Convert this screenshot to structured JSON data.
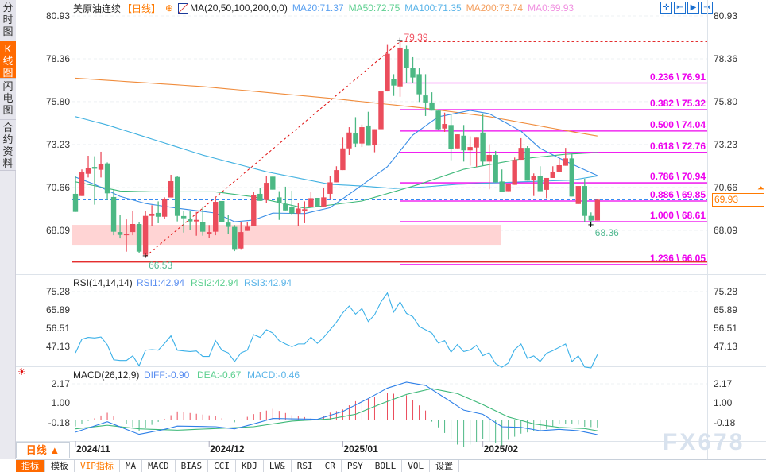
{
  "sidebar": {
    "tabs": [
      {
        "label": "分时图",
        "active": false
      },
      {
        "label": "K线图",
        "active": true
      },
      {
        "label": "闪电图",
        "active": false
      },
      {
        "label": "合约资料",
        "active": false
      }
    ]
  },
  "header": {
    "symbol": "美原油连续",
    "period": "【日线】",
    "ma_params": "MA(20,50,100,200,0,0)",
    "ma20": "MA20:71.37",
    "ma50": "MA50:72.75",
    "ma100": "MA100:71.35",
    "ma200": "MA200:73.74",
    "ma0": "MA0:69.93"
  },
  "toolbar_icons": [
    "crosshair-icon",
    "fit-left-icon",
    "play-icon",
    "jump-end-icon"
  ],
  "colors": {
    "up": "#eb4d5c",
    "down": "#4cb884",
    "ma20": "#3a8ee6",
    "ma50": "#3cb878",
    "ma100": "#3fb0e0",
    "ma200": "#f08c3c",
    "fib": "#ee00ee",
    "accent": "#ff6a00",
    "zone": "#ffd4d4"
  },
  "price_axis": {
    "ticks": [
      "80.93",
      "78.36",
      "75.80",
      "73.23",
      "70.66",
      "68.09"
    ],
    "current": "69.93"
  },
  "price_chart": {
    "candles_ohlc": [
      [
        70.28,
        71.34,
        69.2,
        69.2
      ],
      [
        70.15,
        71.74,
        70.15,
        71.56
      ],
      [
        71.48,
        72.56,
        71.26,
        71.83
      ],
      [
        71.89,
        72.53,
        69.63,
        71.78
      ],
      [
        71.72,
        72.8,
        71.26,
        72.04
      ],
      [
        72.1,
        72.16,
        69.91,
        70.31
      ],
      [
        70.09,
        70.51,
        67.8,
        68.01
      ],
      [
        67.99,
        69.04,
        67.61,
        67.82
      ],
      [
        67.8,
        68.75,
        66.82,
        67.9
      ],
      [
        67.99,
        69.28,
        67.8,
        68.47
      ],
      [
        68.47,
        68.57,
        66.74,
        66.82
      ],
      [
        66.63,
        69.28,
        66.53,
        68.96
      ],
      [
        68.96,
        69.6,
        68.37,
        69.09
      ],
      [
        69.14,
        69.83,
        68.52,
        68.91
      ],
      [
        68.91,
        70.07,
        68.76,
        69.99
      ],
      [
        70.06,
        71.42,
        70.06,
        71.04
      ],
      [
        71.29,
        71.37,
        68.63,
        68.96
      ],
      [
        68.95,
        69.28,
        67.96,
        68.82
      ],
      [
        68.75,
        69.28,
        68.09,
        68.63
      ],
      [
        68.63,
        69.2,
        67.77,
        68.72
      ],
      [
        68.61,
        69.52,
        67.77,
        68.01
      ],
      [
        67.87,
        68.41,
        67.65,
        67.99
      ],
      [
        68.01,
        70.12,
        67.8,
        69.8
      ],
      [
        69.85,
        69.85,
        68.58,
        68.58
      ],
      [
        68.56,
        69.04,
        67.88,
        68.3
      ],
      [
        68.3,
        68.41,
        66.85,
        66.98
      ],
      [
        67.01,
        68.57,
        66.98,
        67.99
      ],
      [
        68.06,
        68.57,
        68.06,
        68.31
      ],
      [
        68.33,
        70.42,
        68.33,
        70.23
      ],
      [
        70.28,
        70.63,
        69.86,
        69.86
      ],
      [
        69.91,
        71.34,
        69.75,
        70.94
      ],
      [
        71.31,
        71.31,
        70.53,
        70.53
      ],
      [
        70.07,
        70.44,
        68.72,
        69.71
      ],
      [
        69.66,
        70.71,
        69.29,
        69.29
      ],
      [
        69.47,
        70.47,
        69.04,
        69.1
      ],
      [
        69.1,
        69.75,
        68.34,
        69.4
      ],
      [
        69.23,
        69.83,
        68.52,
        69.36
      ],
      [
        69.48,
        70.39,
        69.48,
        70.02
      ],
      [
        70.04,
        70.04,
        69.5,
        69.5
      ],
      [
        69.52,
        70.63,
        69.52,
        70.07
      ],
      [
        70.28,
        71.34,
        69.99,
        70.97
      ],
      [
        70.97,
        71.93,
        70.97,
        71.7
      ],
      [
        71.7,
        73.64,
        71.7,
        73.0
      ],
      [
        73.0,
        74.27,
        72.61,
        73.95
      ],
      [
        73.89,
        74.87,
        73.08,
        73.29
      ],
      [
        73.29,
        74.43,
        73.08,
        74.27
      ],
      [
        74.37,
        75.19,
        73.16,
        73.16
      ],
      [
        73.19,
        74.15,
        72.77,
        74.15
      ],
      [
        74.15,
        76.41,
        74.15,
        76.41
      ],
      [
        76.41,
        79.19,
        76.41,
        78.66
      ],
      [
        77.13,
        77.44,
        76.14,
        76.76
      ],
      [
        76.71,
        79.39,
        76.09,
        79.03
      ],
      [
        78.93,
        79.15,
        76.89,
        77.81
      ],
      [
        77.79,
        78.46,
        76.89,
        77.24
      ],
      [
        77.44,
        77.79,
        75.78,
        76.24
      ],
      [
        76.17,
        77.44,
        74.94,
        75.75
      ],
      [
        75.75,
        76.36,
        75.26,
        75.26
      ],
      [
        75.26,
        75.26,
        74.08,
        74.15
      ],
      [
        74.19,
        75.14,
        73.99,
        74.46
      ],
      [
        74.4,
        75.07,
        72.29,
        72.96
      ],
      [
        73.0,
        73.84,
        73.0,
        73.84
      ],
      [
        73.76,
        74.4,
        72.21,
        72.88
      ],
      [
        72.88,
        73.72,
        71.97,
        73.08
      ],
      [
        73.05,
        73.64,
        71.89,
        73.64
      ],
      [
        73.95,
        75.09,
        71.97,
        72.21
      ],
      [
        72.21,
        73.24,
        70.55,
        72.61
      ],
      [
        72.61,
        72.85,
        70.97,
        70.97
      ],
      [
        71.02,
        71.74,
        70.39,
        70.39
      ],
      [
        70.44,
        70.88,
        70.44,
        70.88
      ],
      [
        70.82,
        72.45,
        70.82,
        72.31
      ],
      [
        72.32,
        73.61,
        72.32,
        73.03
      ],
      [
        73.03,
        73.13,
        71.07,
        71.07
      ],
      [
        71.1,
        71.5,
        70.15,
        71.34
      ],
      [
        71.34,
        71.93,
        70.44,
        70.44
      ],
      [
        70.52,
        71.23,
        70.02,
        71.23
      ],
      [
        71.23,
        71.93,
        71.23,
        71.61
      ],
      [
        71.61,
        72.4,
        71.61,
        71.99
      ],
      [
        71.96,
        73.03,
        71.96,
        72.4
      ],
      [
        72.4,
        72.65,
        70.12,
        70.12
      ],
      [
        69.67,
        70.75,
        69.67,
        70.75
      ],
      [
        70.75,
        71.18,
        68.6,
        68.96
      ],
      [
        68.96,
        69.17,
        68.36,
        68.68
      ],
      [
        68.68,
        69.96,
        68.68,
        69.93
      ]
    ],
    "ma_lines": {
      "ma20": [
        [
          0,
          71.28
        ],
        [
          3,
          70.85
        ],
        [
          7,
          70.13
        ],
        [
          11,
          69.7
        ],
        [
          16,
          69.42
        ],
        [
          22,
          69.13
        ],
        [
          25,
          68.61
        ],
        [
          28,
          68.71
        ],
        [
          31,
          69.13
        ],
        [
          36,
          69.1
        ],
        [
          40,
          69.45
        ],
        [
          45,
          70.8
        ],
        [
          49,
          71.9
        ],
        [
          53,
          73.8
        ],
        [
          57,
          74.89
        ],
        [
          62,
          75.27
        ],
        [
          65,
          75.08
        ],
        [
          70,
          74.03
        ],
        [
          73,
          73.0
        ],
        [
          77,
          72.23
        ],
        [
          82,
          71.37
        ]
      ],
      "ma50": [
        [
          0,
          71.0
        ],
        [
          7,
          70.45
        ],
        [
          12,
          70.4
        ],
        [
          22,
          70.4
        ],
        [
          28,
          70.1
        ],
        [
          36,
          69.42
        ],
        [
          45,
          69.85
        ],
        [
          54,
          70.85
        ],
        [
          61,
          71.75
        ],
        [
          70,
          72.37
        ],
        [
          77,
          72.65
        ],
        [
          82,
          72.75
        ]
      ],
      "ma100": [
        [
          0,
          74.9
        ],
        [
          5,
          74.4
        ],
        [
          10,
          73.8
        ],
        [
          20,
          72.6
        ],
        [
          30,
          71.6
        ],
        [
          40,
          70.85
        ],
        [
          45,
          70.75
        ],
        [
          50,
          70.6
        ],
        [
          55,
          70.7
        ],
        [
          60,
          70.85
        ],
        [
          70,
          71.0
        ],
        [
          78,
          71.1
        ],
        [
          82,
          71.35
        ]
      ],
      "ma200": [
        [
          0,
          77.2
        ],
        [
          20,
          76.7
        ],
        [
          40,
          76.0
        ],
        [
          55,
          75.4
        ],
        [
          65,
          74.9
        ],
        [
          75,
          74.2
        ],
        [
          82,
          73.74
        ]
      ]
    },
    "swing_low": {
      "index": 11,
      "value": 66.53,
      "label": "66.53"
    },
    "swing_high": {
      "index": 51,
      "value": 79.39,
      "label": "79.39"
    },
    "recent_low": {
      "index": 81,
      "value": 68.36,
      "label": "68.36"
    },
    "support_zone": [
      67.23,
      68.42
    ],
    "support_line": 66.2,
    "fib_levels": [
      {
        "value": 76.91,
        "label": "0.236 \\ 76.91"
      },
      {
        "value": 75.32,
        "label": "0.382 \\ 75.32"
      },
      {
        "value": 74.04,
        "label": "0.500 \\ 74.04"
      },
      {
        "value": 72.76,
        "label": "0.618 \\ 72.76"
      },
      {
        "value": 70.94,
        "label": "0.786 \\ 70.94"
      },
      {
        "value": 69.85,
        "label": "0.886 \\ 69.85"
      },
      {
        "value": 68.61,
        "label": "1.000 \\ 68.61"
      },
      {
        "value": 66.05,
        "label": "1.236 \\ 66.05"
      }
    ]
  },
  "rsi": {
    "title": "RSI(14,14,14)",
    "rsi1": "RSI1:42.94",
    "rsi2": "RSI2:42.94",
    "rsi3": "RSI3:42.94",
    "ticks": [
      "75.28",
      "65.89",
      "56.51",
      "47.13"
    ],
    "values": [
      43.8,
      50.8,
      51.8,
      51.5,
      52.0,
      48.0,
      40.3,
      39.9,
      39.9,
      42.3,
      37.2,
      45.2,
      45.5,
      45.2,
      48.7,
      52.6,
      45.2,
      44.8,
      44.5,
      44.8,
      42.0,
      42.0,
      50.1,
      45.2,
      43.8,
      39.4,
      43.8,
      45.2,
      53.2,
      51.8,
      55.7,
      54.0,
      50.1,
      48.4,
      47.0,
      48.4,
      48.4,
      51.9,
      48.7,
      51.8,
      55.7,
      59.6,
      64.4,
      67.9,
      63.7,
      66.6,
      59.9,
      63.4,
      70.0,
      74.6,
      64.8,
      70.0,
      64.1,
      62.4,
      57.4,
      55.7,
      54.0,
      48.9,
      50.1,
      44.2,
      48.1,
      44.5,
      45.3,
      47.7,
      42.4,
      43.9,
      38.3,
      36.5,
      38.6,
      45.5,
      48.4,
      41.0,
      42.3,
      39.4,
      43.6,
      45.0,
      46.7,
      48.4,
      39.4,
      42.3,
      36.6,
      36.1,
      42.94
    ]
  },
  "macd": {
    "title": "MACD(26,12,9)",
    "diff_label": "DIFF:-0.90",
    "dea_label": "DEA:-0.67",
    "macd_label": "MACD:-0.46",
    "ticks": [
      "2.17",
      "1.00",
      "-0.18"
    ],
    "diff": [
      [
        0,
        -0.75
      ],
      [
        5,
        -0.12
      ],
      [
        8,
        -0.58
      ],
      [
        10,
        -0.88
      ],
      [
        14,
        -0.58
      ],
      [
        16,
        -0.38
      ],
      [
        22,
        -0.42
      ],
      [
        25,
        -0.55
      ],
      [
        28,
        -0.25
      ],
      [
        31,
        0.08
      ],
      [
        38,
        0.03
      ],
      [
        42,
        0.5
      ],
      [
        46,
        1.28
      ],
      [
        49,
        1.91
      ],
      [
        52,
        2.27
      ],
      [
        55,
        2.07
      ],
      [
        58,
        1.33
      ],
      [
        61,
        0.58
      ],
      [
        64,
        0.33
      ],
      [
        67,
        -0.42
      ],
      [
        70,
        -0.46
      ],
      [
        73,
        -0.66
      ],
      [
        76,
        -0.58
      ],
      [
        79,
        -0.66
      ],
      [
        82,
        -0.9
      ]
    ],
    "dea": [
      [
        0,
        -0.55
      ],
      [
        5,
        -0.33
      ],
      [
        10,
        -0.55
      ],
      [
        16,
        -0.63
      ],
      [
        22,
        -0.53
      ],
      [
        28,
        -0.42
      ],
      [
        34,
        -0.08
      ],
      [
        40,
        0.05
      ],
      [
        44,
        0.33
      ],
      [
        48,
        0.96
      ],
      [
        52,
        1.53
      ],
      [
        56,
        1.88
      ],
      [
        60,
        1.58
      ],
      [
        64,
        0.91
      ],
      [
        68,
        0.17
      ],
      [
        72,
        -0.25
      ],
      [
        76,
        -0.46
      ],
      [
        80,
        -0.53
      ],
      [
        82,
        -0.67
      ]
    ]
  },
  "x_axis": {
    "labels": [
      {
        "text": "2024/11",
        "index": 0
      },
      {
        "text": "2024/12",
        "index": 21
      },
      {
        "text": "2025/01",
        "index": 42
      },
      {
        "text": "2025/02",
        "index": 64
      }
    ]
  },
  "period_button": "日线 ▲",
  "watermark": "FX678",
  "bottom_tabs": [
    "指标",
    "模板",
    "VIP指标",
    "MA",
    "MACD",
    "BIAS",
    "CCI",
    "KDJ",
    "LW&",
    "RSI",
    "CR",
    "PSY",
    "BOLL",
    "VOL",
    "设置"
  ]
}
